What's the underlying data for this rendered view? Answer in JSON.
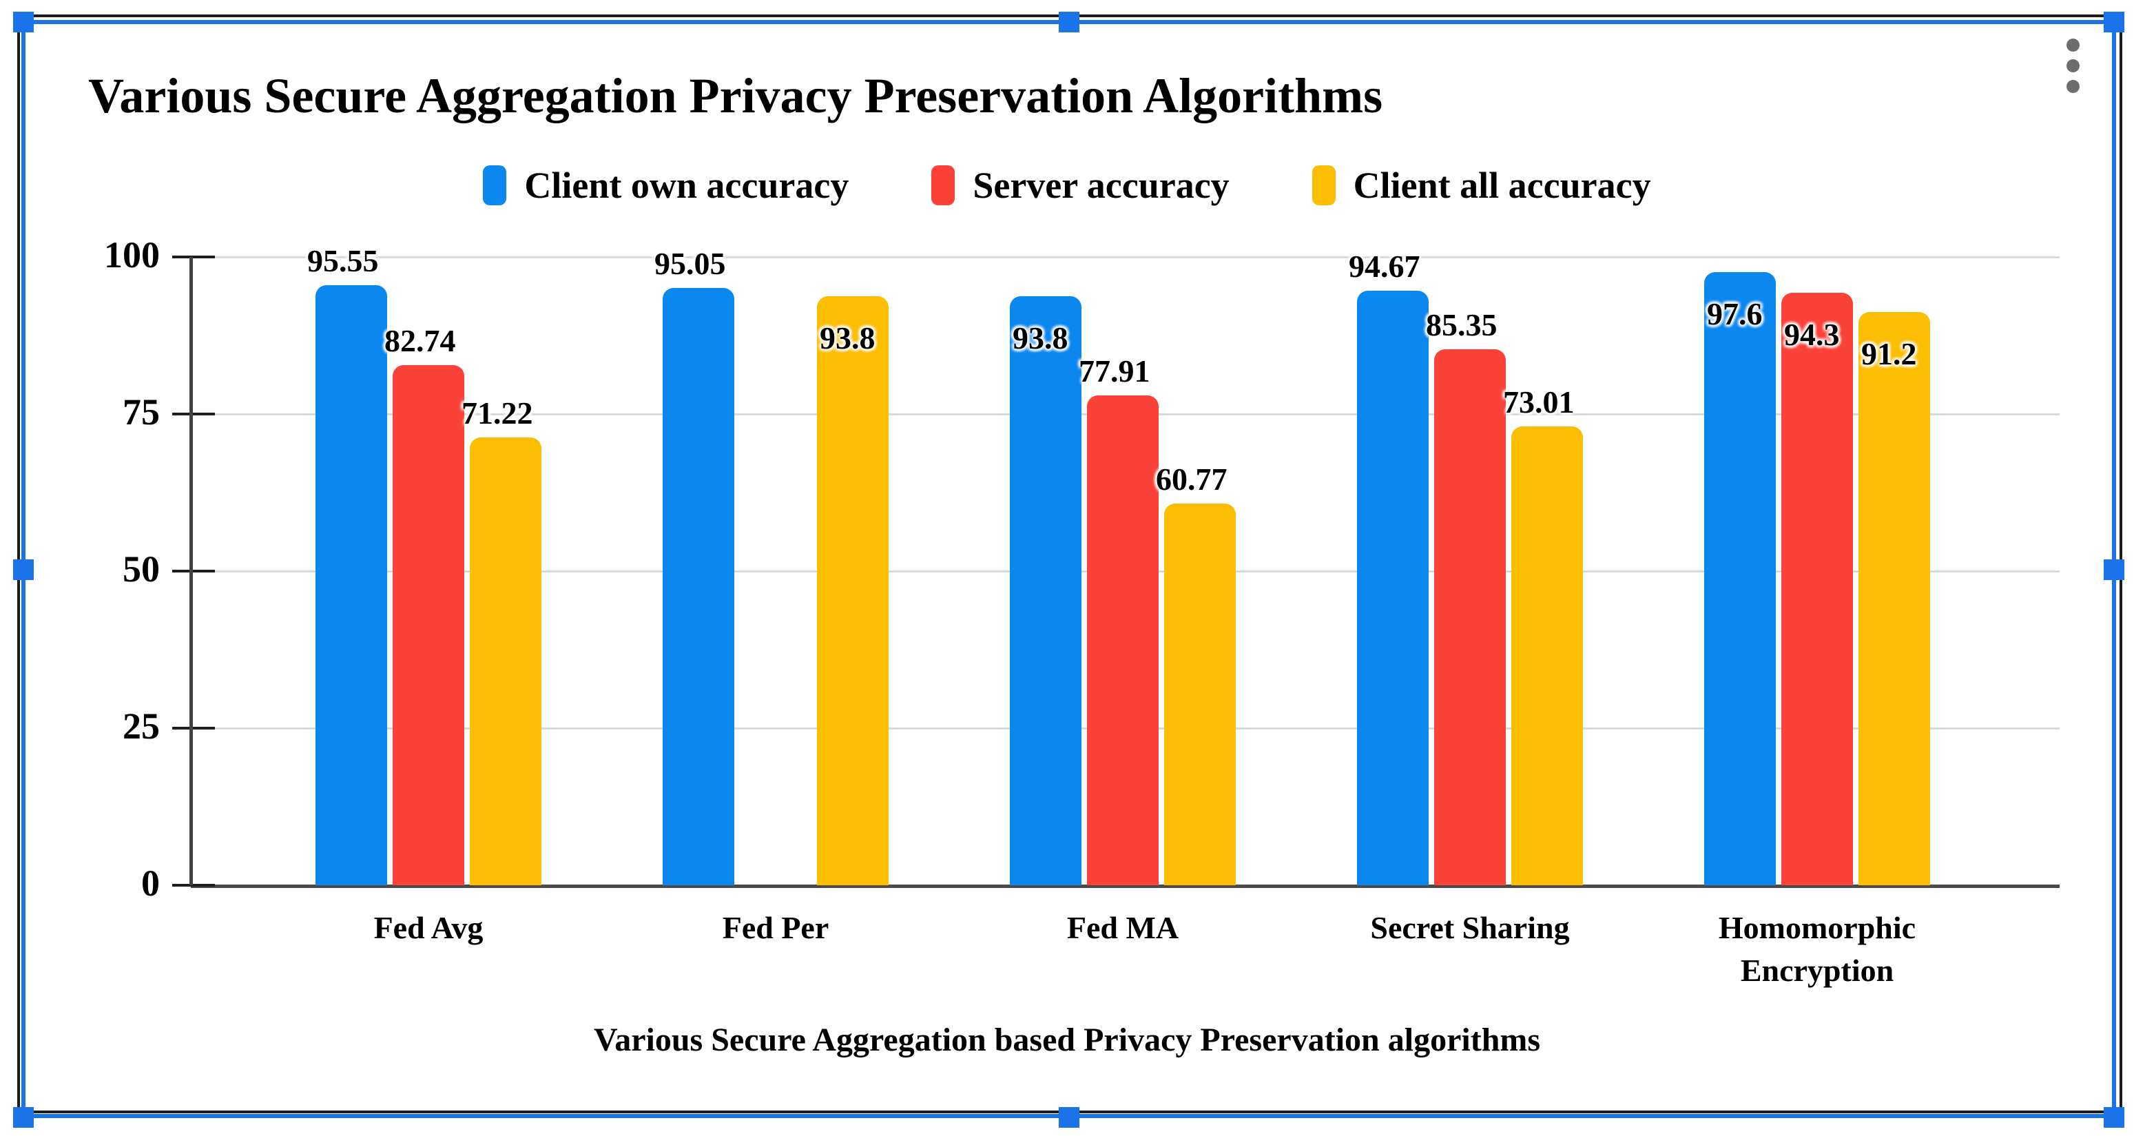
{
  "chart_data": {
    "type": "bar",
    "title": "Various Secure Aggregation Privacy Preservation Algorithms",
    "xlabel": "Various Secure Aggregation based Privacy Preservation algorithms",
    "ylabel": "",
    "categories": [
      "Fed Avg",
      "Fed Per",
      "Fed MA",
      "Secret Sharing",
      "Homomorphic Encryption"
    ],
    "series": [
      {
        "name": "Client own accuracy",
        "color": "#0b87f0",
        "values": [
          95.55,
          95.05,
          93.8,
          94.67,
          97.6
        ]
      },
      {
        "name": "Server accuracy",
        "color": "#fb4238",
        "values": [
          82.74,
          null,
          77.91,
          85.35,
          94.3
        ]
      },
      {
        "name": "Client all accuracy",
        "color": "#fcbe03",
        "values": [
          71.22,
          93.8,
          60.77,
          73.01,
          91.2
        ]
      }
    ],
    "data_labels": [
      [
        "95.55",
        "82.74",
        "71.22"
      ],
      [
        "95.05",
        null,
        "93.8"
      ],
      [
        "93.8",
        "77.91",
        "60.77"
      ],
      [
        "94.67",
        "85.35",
        "73.01"
      ],
      [
        "97.6",
        "94.3",
        "91.2"
      ]
    ],
    "label_inside": [
      [
        false,
        false,
        false
      ],
      [
        false,
        null,
        true
      ],
      [
        true,
        false,
        false
      ],
      [
        false,
        false,
        false
      ],
      [
        true,
        true,
        true
      ]
    ],
    "y_ticks": [
      0,
      25,
      50,
      75,
      100
    ],
    "ylim": [
      0,
      100
    ],
    "grid": true,
    "legend_position": "top"
  },
  "overlay": {
    "kebab_icon": "vertical-ellipsis",
    "selection_color": "#1a73e8",
    "handle_count": 8
  },
  "colors": {
    "grid": "#d9d9d9",
    "baseline": "#4a4a4a",
    "axis": "#424242",
    "frame": "#1c1c1c",
    "text": "#000000",
    "kebab": "#6d6d6d"
  }
}
